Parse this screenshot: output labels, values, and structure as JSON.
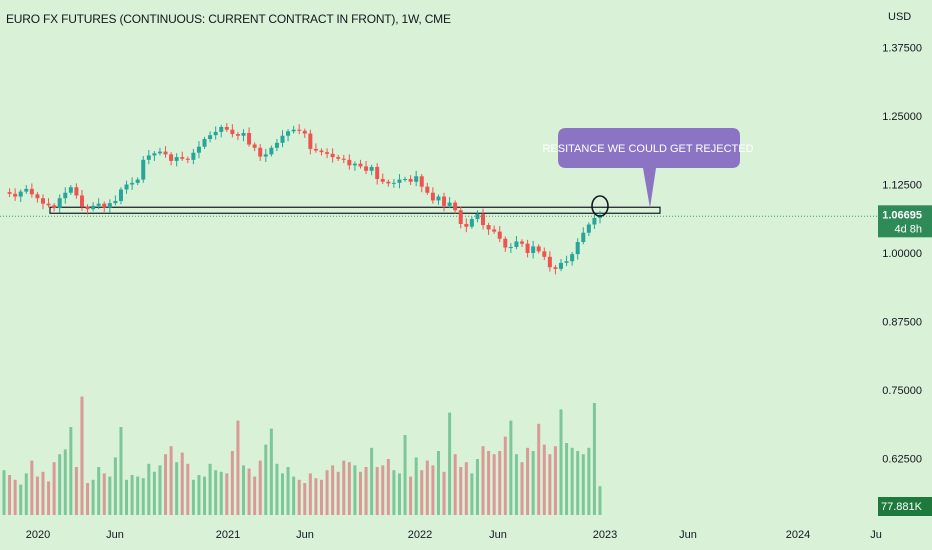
{
  "chart_data": {
    "type": "candlestick",
    "title": "EURO FX FUTURES (CONTINUOUS: CURRENT CONTRACT IN FRONT), 1W, CME",
    "currency": "USD",
    "y_ticks": [
      "1.37500",
      "1.25000",
      "1.12500",
      "1.00000",
      "0.87500",
      "0.75000",
      "0.62500"
    ],
    "y_tick_values": [
      1.375,
      1.25,
      1.125,
      1.0,
      0.875,
      0.75,
      0.625
    ],
    "x_ticks": [
      "2020",
      "Jun",
      "2021",
      "Jun",
      "2022",
      "Jun",
      "2023",
      "Jun",
      "2024",
      "Ju"
    ],
    "last_price": "1.06695",
    "last_price_value": 1.06695,
    "countdown": "4d 8h",
    "volume_label": "77.881K",
    "resistance_level": 1.078,
    "annotation": "RESITANCE WE COULD GET REJECTED",
    "close_path": [
      1.111,
      1.108,
      1.103,
      1.112,
      1.117,
      1.107,
      1.1,
      1.09,
      1.087,
      1.082,
      1.1,
      1.11,
      1.12,
      1.105,
      1.085,
      1.08,
      1.086,
      1.09,
      1.083,
      1.091,
      1.095,
      1.116,
      1.125,
      1.128,
      1.134,
      1.17,
      1.178,
      1.182,
      1.185,
      1.18,
      1.168,
      1.175,
      1.172,
      1.17,
      1.183,
      1.194,
      1.208,
      1.215,
      1.221,
      1.23,
      1.225,
      1.217,
      1.214,
      1.219,
      1.198,
      1.192,
      1.176,
      1.18,
      1.192,
      1.201,
      1.214,
      1.222,
      1.225,
      1.223,
      1.218,
      1.19,
      1.187,
      1.184,
      1.181,
      1.175,
      1.172,
      1.17,
      1.16,
      1.163,
      1.158,
      1.15,
      1.157,
      1.135,
      1.13,
      1.127,
      1.128,
      1.134,
      1.135,
      1.13,
      1.14,
      1.121,
      1.11,
      1.096,
      1.103,
      1.086,
      1.092,
      1.078,
      1.053,
      1.048,
      1.062,
      1.071,
      1.051,
      1.043,
      1.039,
      1.026,
      1.01,
      1.011,
      1.021,
      1.017,
      1.0,
      1.012,
      1.003,
      0.993,
      0.974,
      0.971,
      0.982,
      0.985,
      0.998,
      1.02,
      1.037,
      1.052,
      1.064,
      1.067
    ],
    "volume_path": [
      0.28,
      0.25,
      0.22,
      0.19,
      0.26,
      0.34,
      0.24,
      0.27,
      0.21,
      0.33,
      0.38,
      0.41,
      0.55,
      0.3,
      0.74,
      0.2,
      0.22,
      0.3,
      0.26,
      0.24,
      0.36,
      0.55,
      0.22,
      0.25,
      0.24,
      0.23,
      0.32,
      0.27,
      0.31,
      0.38,
      0.43,
      0.33,
      0.39,
      0.32,
      0.22,
      0.25,
      0.24,
      0.32,
      0.28,
      0.27,
      0.26,
      0.4,
      0.59,
      0.31,
      0.29,
      0.24,
      0.34,
      0.44,
      0.54,
      0.32,
      0.26,
      0.3,
      0.24,
      0.22,
      0.2,
      0.26,
      0.23,
      0.22,
      0.28,
      0.31,
      0.27,
      0.34,
      0.33,
      0.31,
      0.27,
      0.3,
      0.42,
      0.3,
      0.31,
      0.35,
      0.28,
      0.26,
      0.5,
      0.24,
      0.36,
      0.28,
      0.34,
      0.31,
      0.4,
      0.27,
      0.64,
      0.38,
      0.3,
      0.33,
      0.26,
      0.35,
      0.43,
      0.4,
      0.38,
      0.4,
      0.49,
      0.59,
      0.38,
      0.33,
      0.42,
      0.4,
      0.57,
      0.44,
      0.38,
      0.43,
      0.66,
      0.45,
      0.42,
      0.4,
      0.38,
      0.42,
      0.7,
      0.18
    ]
  },
  "colors": {
    "background": "#d9f1d6",
    "bull": "#26a69a",
    "bear": "#ef5350",
    "vol_bull": "#7cc79a",
    "vol_bear": "#d99a95",
    "axis_text": "#131722",
    "price_tag": "#2e8b57",
    "volume_tag": "#1e7a3c",
    "annotation_bg": "#8b74c4",
    "line": "#131722"
  }
}
